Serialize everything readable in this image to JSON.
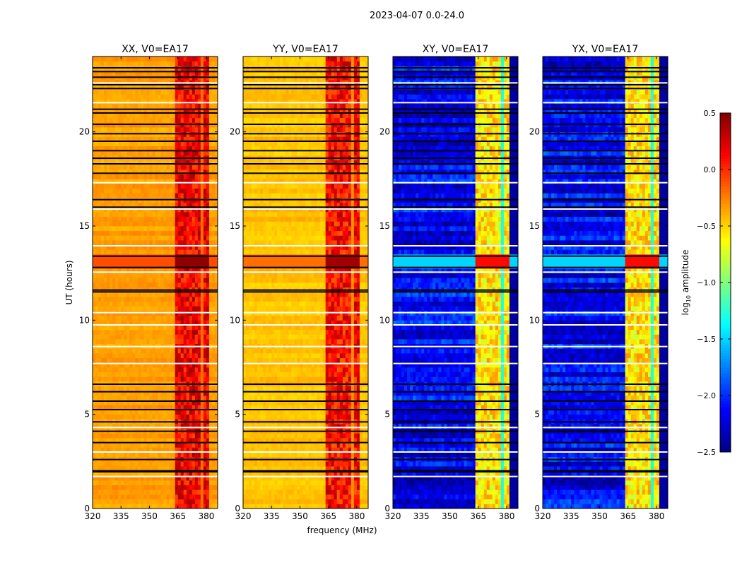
{
  "chart_data": {
    "type": "heatmap",
    "suptitle": "2023-04-07 0.0-24.0",
    "xlabel": "frequency (MHz)",
    "ylabel": "UT (hours)",
    "xlim": [
      320,
      386
    ],
    "ylim": [
      0,
      24
    ],
    "xticks": [
      320,
      335,
      350,
      365,
      380
    ],
    "yticks": [
      0,
      5,
      10,
      15,
      20
    ],
    "colormap": "jet",
    "colorbar": {
      "label_main": "log",
      "label_sub": "10",
      "label_rest": " amplitude",
      "range": [
        -2.5,
        0.5
      ],
      "ticks": [
        -2.5,
        -2.0,
        -1.5,
        -1.0,
        -0.5,
        0.0,
        0.5
      ],
      "tick_labels": [
        "−2.5",
        "−2.0",
        "−1.5",
        "−1.0",
        "−0.5",
        "0.0",
        "0.5"
      ]
    },
    "panels": [
      {
        "title": "XX, V0=EA17",
        "baseline": -0.35,
        "band_level": 0.15,
        "gap_level": -0.2,
        "burst_level": 0.45
      },
      {
        "title": "YY, V0=EA17",
        "baseline": -0.45,
        "band_level": 0.1,
        "gap_level": -0.3,
        "burst_level": 0.4
      },
      {
        "title": "XY, V0=EA17",
        "baseline": -2.15,
        "band_level": -0.55,
        "gap_level": -1.3,
        "burst_level": 0.1
      },
      {
        "title": "YX, V0=EA17",
        "baseline": -2.15,
        "band_level": -0.55,
        "gap_level": -1.3,
        "burst_level": 0.1
      }
    ],
    "rfi_bands_mhz": [
      [
        363,
        367.3
      ],
      [
        368.2,
        372.3
      ],
      [
        373.2,
        377.3
      ],
      [
        378.2,
        381.5
      ]
    ],
    "burst_hours": [
      12.8,
      13.4
    ],
    "flagged_black_hours": [
      23.4,
      23.2,
      22.9,
      22.5,
      22.3,
      21.2,
      21.0,
      20.4,
      19.9,
      19.5,
      19.0,
      18.6,
      18.3,
      17.8,
      16.4,
      16.0,
      13.4,
      12.8,
      11.6,
      11.5,
      6.6,
      6.2,
      5.7,
      5.25,
      4.6,
      4.1,
      3.5,
      2.6,
      2.0,
      1.95
    ],
    "gap_white_hours": [
      22.6,
      21.55,
      17.3,
      15.9,
      13.95,
      12.55,
      10.4,
      9.75,
      8.6,
      7.7,
      4.3,
      3.0,
      1.7
    ]
  }
}
